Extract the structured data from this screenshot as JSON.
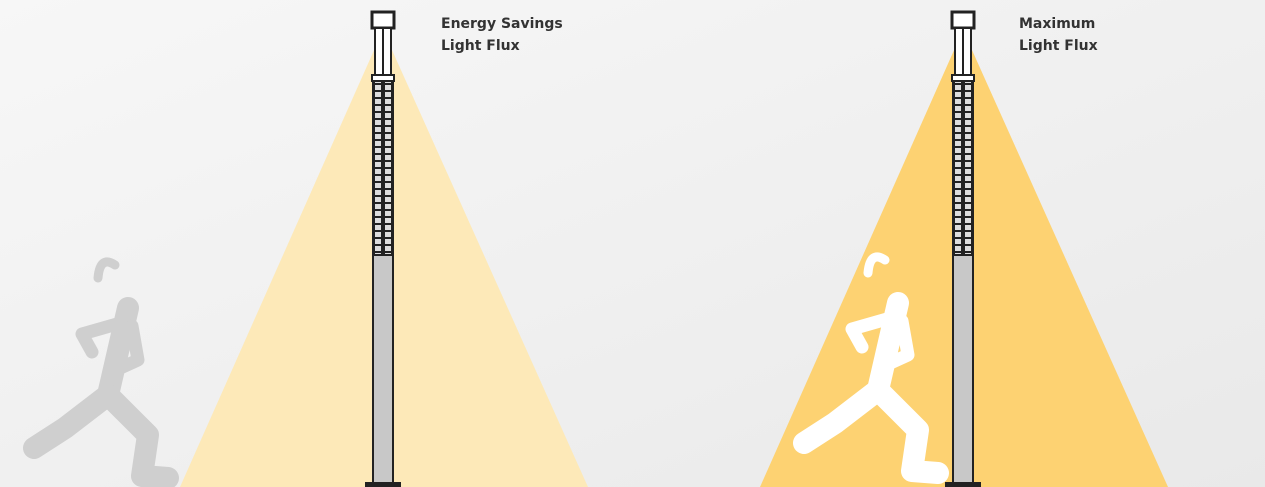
{
  "labels": [
    {
      "lines": [
        "Energy Savings",
        "Light Flux"
      ]
    },
    {
      "lines": [
        "Maximum",
        "Light Flux"
      ]
    }
  ]
}
